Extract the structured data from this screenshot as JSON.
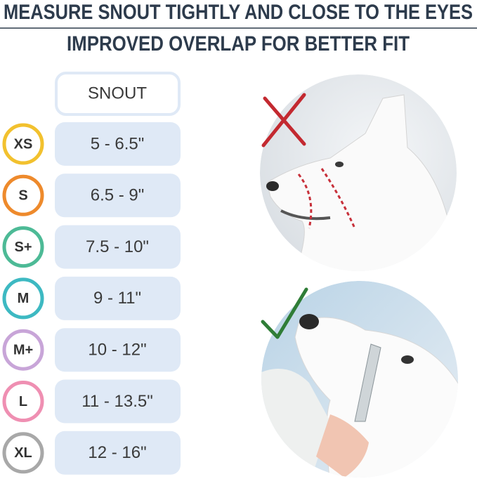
{
  "header": {
    "line1": "MEASURE SNOUT TIGHTLY AND CLOSE TO THE EYES",
    "line2": "IMPROVED OVERLAP FOR BETTER FIT"
  },
  "table": {
    "column_header": "SNOUT",
    "rows": [
      {
        "size": "XS",
        "snout": "5 - 6.5\"",
        "color": "#f2c12e"
      },
      {
        "size": "S",
        "snout": "6.5 - 9\"",
        "color": "#ee8a2c"
      },
      {
        "size": "S+",
        "snout": "7.5 - 10\"",
        "color": "#4dba96"
      },
      {
        "size": "M",
        "snout": "9 - 11\"",
        "color": "#3db9c2"
      },
      {
        "size": "M+",
        "snout": "10 - 12\"",
        "color": "#c8a5d8"
      },
      {
        "size": "L",
        "snout": "11 - 13.5\"",
        "color": "#ef8fb2"
      },
      {
        "size": "XL",
        "snout": "12 - 16\"",
        "color": "#a8a8a8"
      }
    ]
  }
}
